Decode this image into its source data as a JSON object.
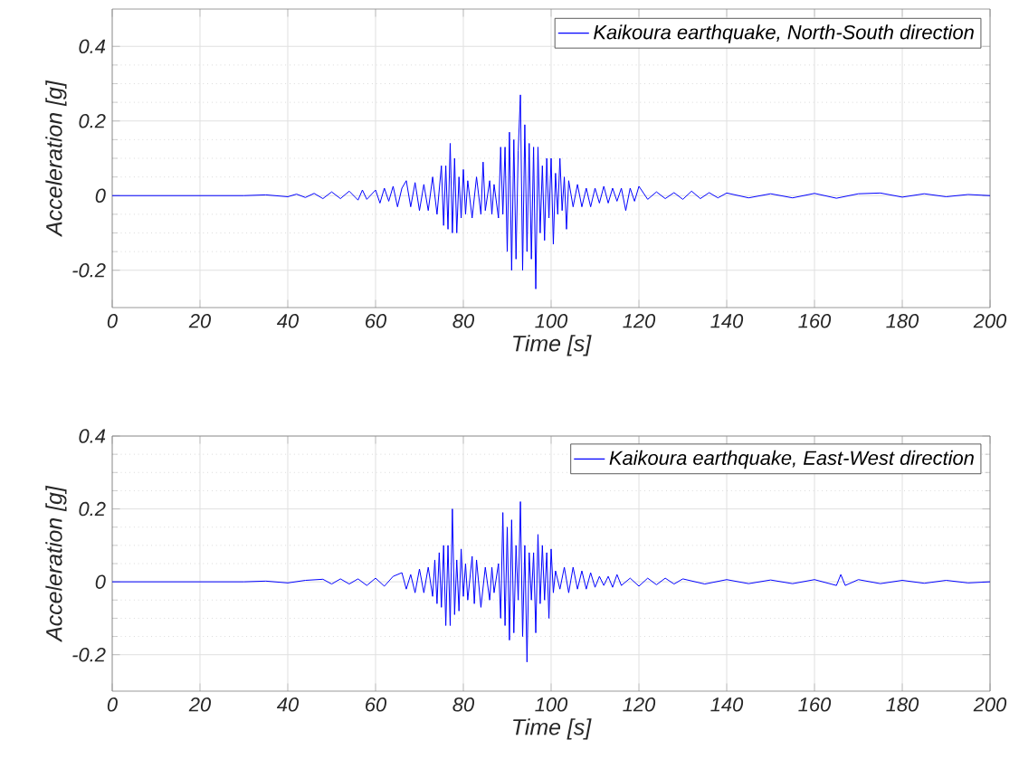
{
  "chart_data": [
    {
      "type": "line",
      "xlabel": "Time [s]",
      "ylabel": "Acceleration [g]",
      "xlim": [
        0,
        200
      ],
      "ylim": [
        -0.3,
        0.5
      ],
      "xticks": [
        0,
        20,
        40,
        60,
        80,
        100,
        120,
        140,
        160,
        180,
        200
      ],
      "yticks": [
        -0.2,
        0,
        0.2,
        0.4
      ],
      "grid": true,
      "legend": "top right",
      "series": [
        {
          "name": "Kaikoura earthquake, North-South direction",
          "color": "#0000ff",
          "x": [
            0,
            10,
            20,
            30,
            35,
            40,
            42,
            44,
            46,
            48,
            50,
            52,
            54,
            56,
            57,
            58,
            60,
            61,
            62,
            63,
            64,
            65,
            66,
            67,
            68,
            69,
            70,
            71,
            72,
            73,
            74,
            75,
            75.5,
            76,
            76.5,
            77,
            77.5,
            78,
            78.5,
            79,
            79.5,
            80,
            80.5,
            81,
            82,
            83,
            84,
            84.5,
            85,
            86,
            86.5,
            87,
            88,
            88.5,
            89,
            89.5,
            90,
            90.5,
            91,
            91.5,
            92,
            92.5,
            93,
            93.5,
            94,
            94.5,
            95,
            95.5,
            96,
            96.5,
            97,
            97.5,
            98,
            98.5,
            99,
            99.5,
            100,
            100.5,
            101,
            101.5,
            102,
            102.5,
            103,
            103.5,
            104,
            105,
            106,
            107,
            108,
            109,
            110,
            111,
            112,
            113,
            114,
            115,
            116,
            117,
            118,
            119,
            120,
            122,
            124,
            126,
            128,
            130,
            132,
            134,
            136,
            138,
            140,
            145,
            150,
            155,
            160,
            165,
            170,
            175,
            180,
            185,
            190,
            195,
            200
          ],
          "values": [
            0,
            0,
            0,
            0,
            0.002,
            -0.003,
            0.004,
            -0.005,
            0.006,
            -0.008,
            0.01,
            -0.008,
            0.012,
            -0.012,
            0.015,
            -0.01,
            0.015,
            -0.02,
            0.02,
            -0.015,
            0.025,
            -0.03,
            0.02,
            0.04,
            -0.03,
            0.035,
            -0.04,
            0.03,
            -0.04,
            0.05,
            -0.05,
            0.08,
            -0.08,
            0.08,
            -0.09,
            0.14,
            -0.1,
            0.1,
            -0.1,
            0.05,
            -0.06,
            0.07,
            -0.05,
            0.04,
            -0.06,
            0.05,
            -0.05,
            0.09,
            -0.04,
            0.04,
            -0.05,
            0.03,
            -0.06,
            0.13,
            -0.05,
            0.13,
            -0.15,
            0.17,
            -0.2,
            0.15,
            -0.17,
            0.12,
            0.27,
            -0.2,
            0.19,
            -0.15,
            0.14,
            -0.17,
            0.13,
            -0.25,
            0.13,
            -0.1,
            0.08,
            -0.12,
            0.1,
            -0.06,
            0.1,
            -0.13,
            0.06,
            -0.05,
            0.1,
            -0.04,
            0.05,
            -0.09,
            0.04,
            -0.03,
            0.03,
            -0.03,
            0.02,
            -0.03,
            0.02,
            -0.02,
            0.025,
            -0.02,
            0.02,
            -0.015,
            0.02,
            -0.04,
            0.02,
            -0.015,
            0.025,
            -0.01,
            0.01,
            -0.008,
            0.008,
            -0.01,
            0.012,
            -0.008,
            0.008,
            -0.006,
            0.007,
            -0.006,
            0.005,
            -0.006,
            0.006,
            -0.007,
            0.005,
            0.007,
            -0.004,
            0.005,
            -0.003,
            0.003,
            0
          ]
        }
      ]
    },
    {
      "type": "line",
      "xlabel": "Time [s]",
      "ylabel": "Acceleration [g]",
      "xlim": [
        0,
        200
      ],
      "ylim": [
        -0.3,
        0.4
      ],
      "xticks": [
        0,
        20,
        40,
        60,
        80,
        100,
        120,
        140,
        160,
        180,
        200
      ],
      "yticks": [
        -0.2,
        0,
        0.2,
        0.4
      ],
      "grid": true,
      "legend": "top right",
      "series": [
        {
          "name": "Kaikoura earthquake, East-West direction",
          "color": "#0000ff",
          "x": [
            0,
            10,
            20,
            30,
            35,
            40,
            44,
            48,
            50,
            52,
            54,
            56,
            58,
            60,
            62,
            64,
            66,
            67,
            68,
            69,
            70,
            71,
            72,
            73,
            73.5,
            74,
            74.5,
            75,
            75.5,
            76,
            76.5,
            77,
            77.5,
            78,
            78.5,
            79,
            79.5,
            80,
            80.5,
            81,
            82,
            82.5,
            83,
            84,
            85,
            86,
            86.5,
            87,
            88,
            88.5,
            89,
            89.5,
            90,
            90.5,
            91,
            91.5,
            92,
            92.5,
            93,
            93.5,
            94,
            94.5,
            95,
            95.5,
            96,
            96.5,
            97,
            97.5,
            98,
            98.5,
            99,
            99.5,
            100,
            100.5,
            101,
            102,
            103,
            104,
            105,
            106,
            107,
            108,
            109,
            110,
            111,
            112,
            113,
            114,
            115,
            116,
            118,
            120,
            122,
            124,
            126,
            128,
            130,
            135,
            140,
            145,
            150,
            155,
            160,
            165,
            166,
            167,
            170,
            175,
            180,
            185,
            190,
            195,
            200
          ],
          "values": [
            0,
            0,
            0,
            0,
            0.002,
            -0.003,
            0.004,
            0.007,
            -0.006,
            0.008,
            -0.006,
            0.008,
            -0.01,
            0.01,
            -0.012,
            0.015,
            0.025,
            -0.02,
            0.02,
            -0.03,
            0.035,
            -0.03,
            0.04,
            -0.04,
            0.06,
            -0.06,
            0.08,
            -0.07,
            0.1,
            -0.12,
            0.1,
            -0.12,
            0.2,
            -0.09,
            0.06,
            -0.08,
            0.09,
            -0.04,
            0.05,
            -0.05,
            0.07,
            -0.06,
            0.06,
            -0.07,
            0.04,
            -0.05,
            0.04,
            -0.03,
            0.05,
            -0.1,
            0.19,
            -0.12,
            0.15,
            -0.16,
            0.17,
            -0.14,
            0.1,
            -0.05,
            0.22,
            -0.15,
            0.1,
            -0.22,
            0.08,
            -0.05,
            0.08,
            -0.14,
            0.13,
            -0.06,
            0.1,
            -0.05,
            0.08,
            -0.1,
            0.09,
            -0.03,
            0.03,
            -0.02,
            0.04,
            -0.03,
            0.04,
            -0.02,
            0.03,
            -0.02,
            0.025,
            -0.015,
            0.015,
            -0.01,
            0.015,
            -0.015,
            0.02,
            -0.01,
            0.01,
            -0.012,
            0.01,
            -0.008,
            0.01,
            -0.006,
            0.008,
            -0.006,
            0.006,
            -0.005,
            0.005,
            -0.005,
            0.006,
            -0.01,
            0.02,
            -0.01,
            0.006,
            -0.005,
            0.004,
            -0.004,
            0.004,
            -0.003,
            0
          ]
        }
      ]
    }
  ]
}
